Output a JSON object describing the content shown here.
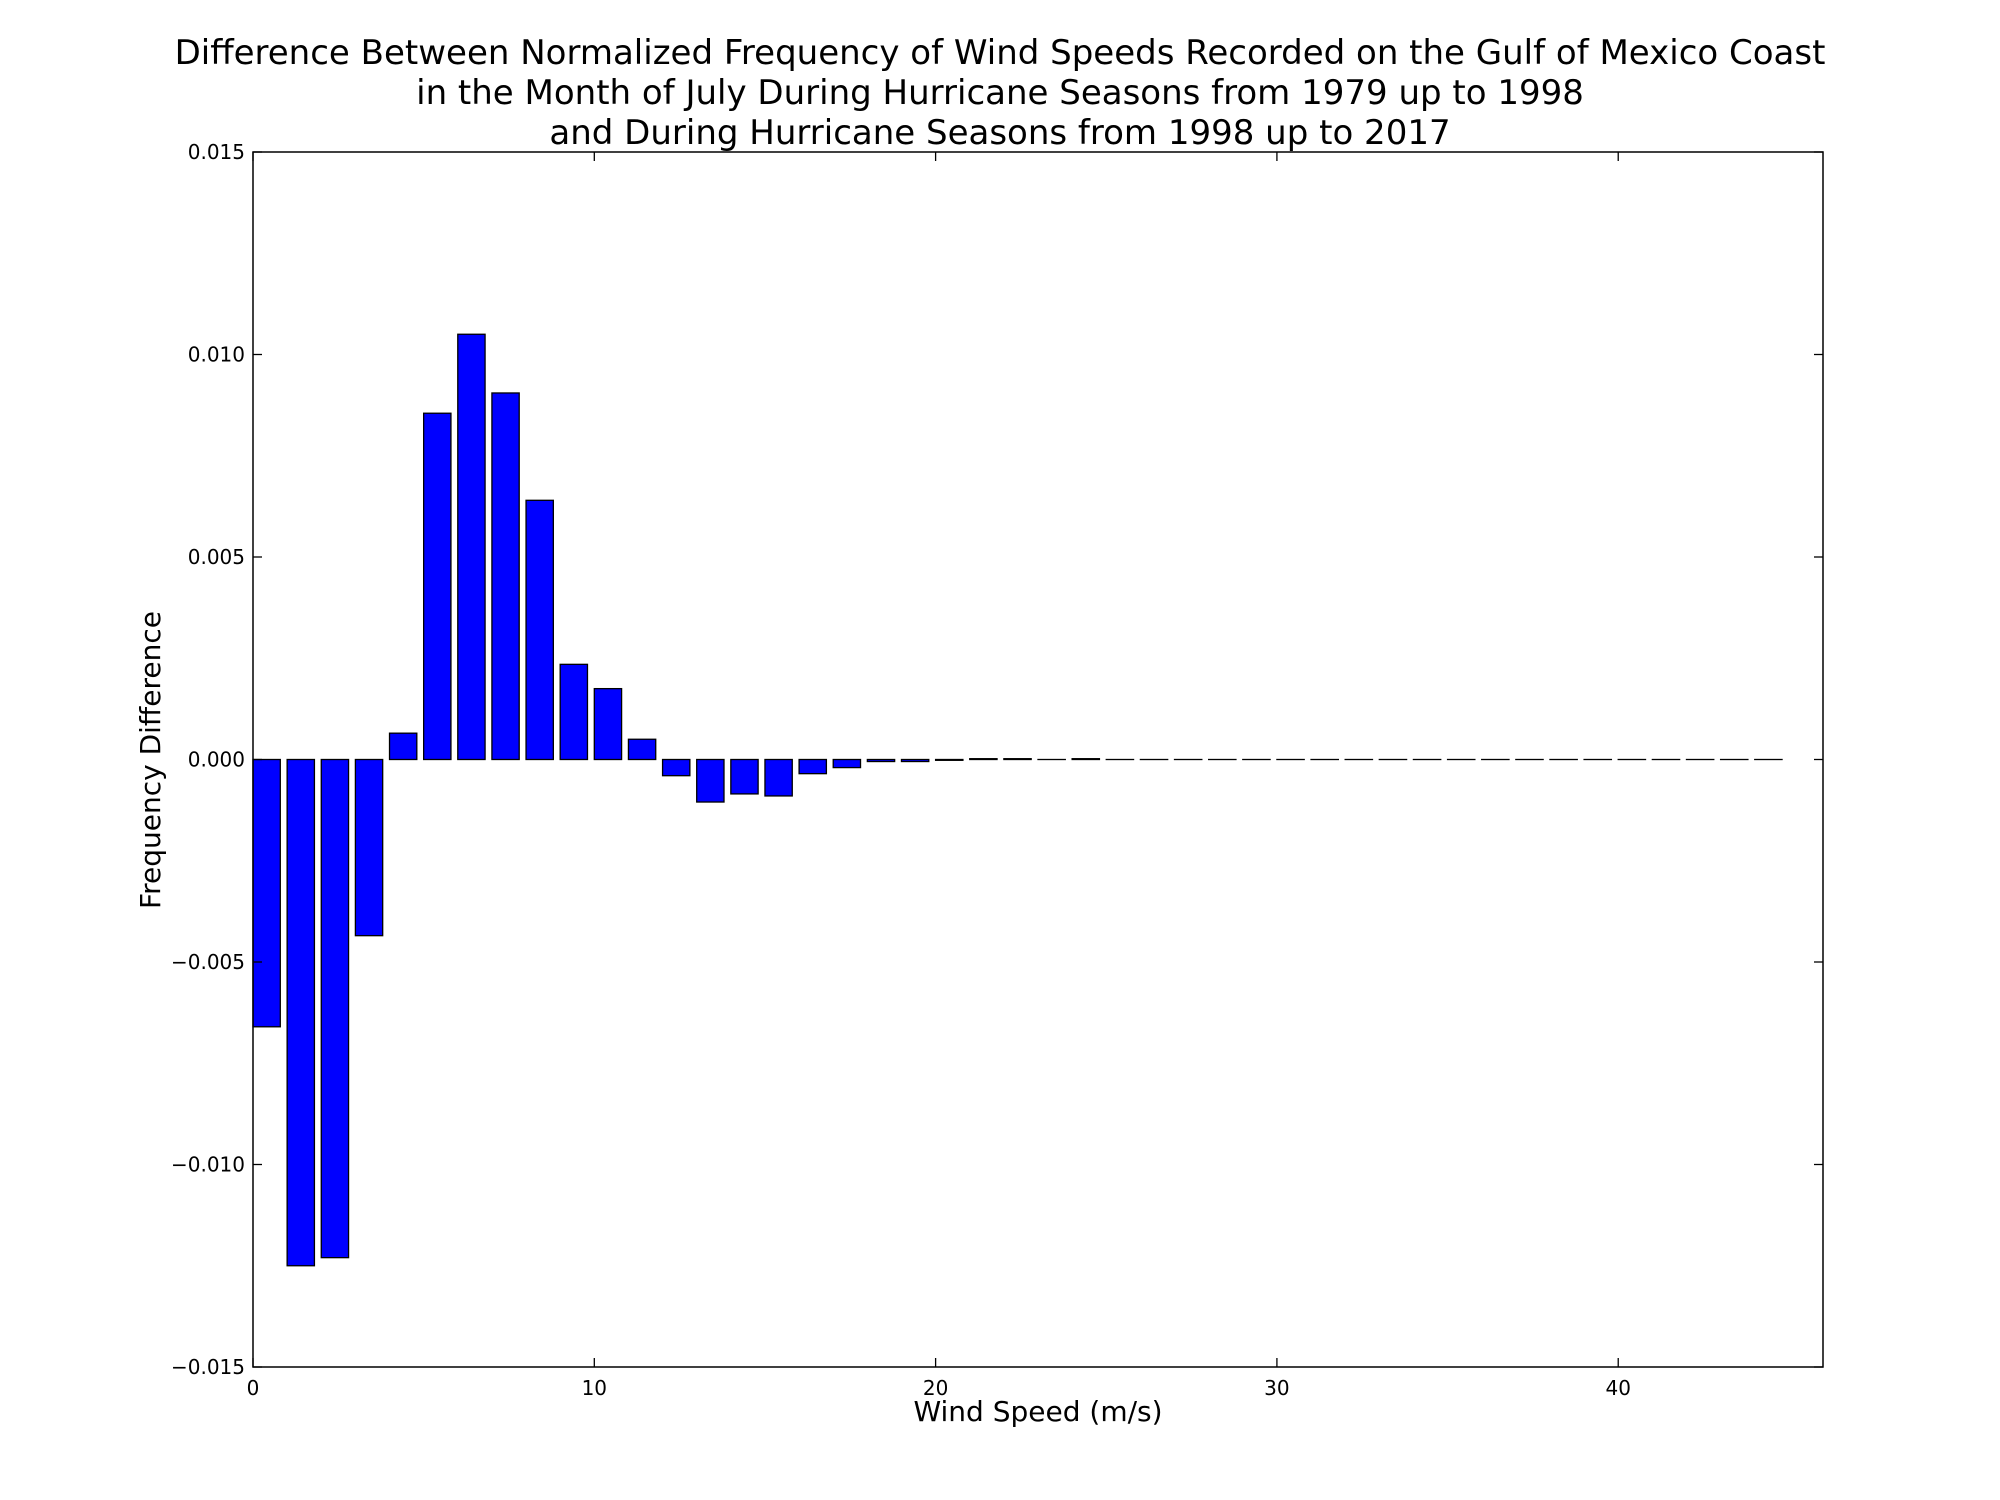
{
  "chart_data": {
    "type": "bar",
    "title_lines": [
      "Difference Between Normalized Frequency of Wind Speeds Recorded on the Gulf of Mexico Coast",
      "in the Month of July During Hurricane Seasons from 1979 up to 1998",
      "and During Hurricane Seasons from 1998 up to 2017"
    ],
    "xlabel": "Wind Speed (m/s)",
    "ylabel": "Frequency Difference",
    "xlim": [
      0,
      46
    ],
    "ylim": [
      -0.015,
      0.015
    ],
    "x_ticks": [
      0,
      10,
      20,
      30,
      40
    ],
    "x_tick_labels": [
      "0",
      "10",
      "20",
      "30",
      "40"
    ],
    "y_ticks": [
      0.015,
      0.01,
      0.005,
      0.0,
      -0.005,
      -0.01,
      -0.015
    ],
    "y_tick_labels": [
      "0.015",
      "0.010",
      "0.005",
      "0.000",
      "−0.005",
      "−0.010",
      "−0.015"
    ],
    "bar_width": 0.8,
    "bar_color": "#0000ff",
    "edge_color": "#000000",
    "grid": false,
    "x": [
      0,
      1,
      2,
      3,
      4,
      5,
      6,
      7,
      8,
      9,
      10,
      11,
      12,
      13,
      14,
      15,
      16,
      17,
      18,
      19,
      20,
      21,
      22,
      23,
      24,
      25,
      26,
      27,
      28,
      29,
      30,
      31,
      32,
      33,
      34,
      35,
      36,
      37,
      38,
      39,
      40,
      41,
      42,
      43,
      44
    ],
    "values": [
      -0.0066,
      -0.0125,
      -0.0123,
      -0.00435,
      0.00065,
      0.00855,
      0.0105,
      0.00905,
      0.0064,
      0.00235,
      0.00175,
      0.0005,
      -0.0004,
      -0.00105,
      -0.00085,
      -0.0009,
      -0.00035,
      -0.0002,
      -5e-05,
      -5e-05,
      -2e-05,
      2e-05,
      2e-05,
      0.0,
      2e-05,
      0,
      0,
      0,
      0,
      0,
      0,
      0,
      0,
      0,
      0,
      0,
      0,
      0,
      0,
      0,
      0,
      0,
      0,
      0,
      0
    ]
  }
}
